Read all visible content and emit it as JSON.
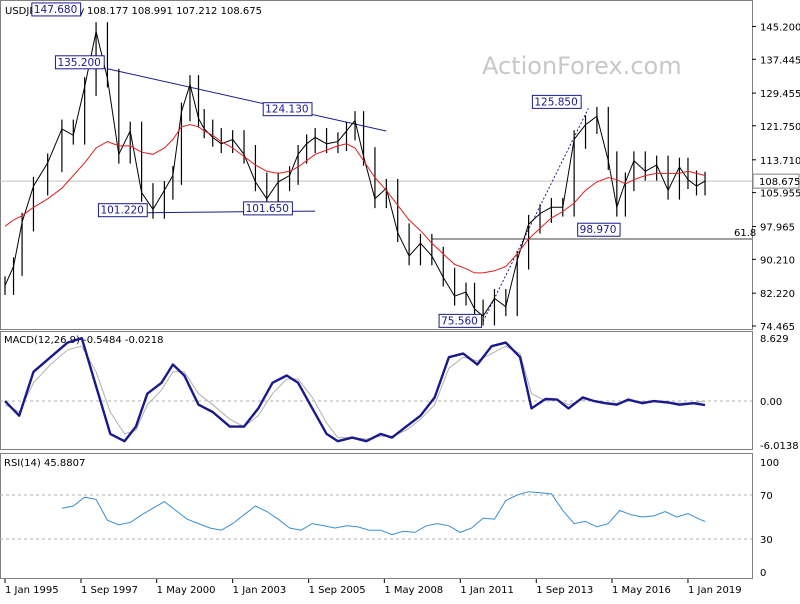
{
  "header": {
    "symbol": "USDJPY,Monthly",
    "ohlc": "108.177 108.991 107.212 108.675",
    "watermark": "ActionForex.com"
  },
  "colors": {
    "candles": "#000000",
    "ma": "#dd2020",
    "annotation": "#1a1a8c",
    "macd_line": "#1a1a8c",
    "signal_line": "#b0b0b0",
    "rsi_line": "#3a8fd0",
    "grid_dash": "#b0b0b0"
  },
  "chart_data": [
    {
      "type": "line",
      "name": "price",
      "title": "USDJPY,Monthly",
      "x_ticks": [
        "1 Jan 1995",
        "1 Sep 1997",
        "1 May 2000",
        "1 Jan 2003",
        "1 Sep 2005",
        "1 May 2008",
        "1 Jan 2011",
        "1 Sep 2013",
        "1 May 2016",
        "1 Jan 2019"
      ],
      "y_ticks": [
        145.2,
        137.445,
        129.455,
        121.75,
        113.71,
        105.955,
        97.965,
        90.21,
        82.22,
        74.465
      ],
      "ylim": [
        74.465,
        150.5
      ],
      "current_price": 108.675,
      "level_61_8": {
        "label": "61.8",
        "value": 95.0
      },
      "x": [
        1995.0,
        1995.3,
        1995.6,
        1996.0,
        1996.5,
        1997.0,
        1997.4,
        1997.8,
        1998.2,
        1998.6,
        1999.0,
        1999.4,
        1999.8,
        2000.2,
        2000.6,
        2000.9,
        2001.2,
        2001.5,
        2001.8,
        2002.0,
        2002.3,
        2002.6,
        2003.0,
        2003.4,
        2003.8,
        2004.2,
        2004.6,
        2005.0,
        2005.3,
        2005.6,
        2005.9,
        2006.3,
        2006.7,
        2007.0,
        2007.3,
        2007.6,
        2008.0,
        2008.4,
        2008.8,
        2009.2,
        2009.6,
        2010.0,
        2010.4,
        2010.8,
        2011.2,
        2011.5,
        2011.8,
        2012.2,
        2012.6,
        2013.0,
        2013.4,
        2013.8,
        2014.2,
        2014.6,
        2015.0,
        2015.4,
        2015.8,
        2016.2,
        2016.5,
        2016.8,
        2017.1,
        2017.5,
        2017.9,
        2018.3,
        2018.7,
        2019.0,
        2019.3,
        2019.6
      ],
      "series": [
        {
          "name": "Close",
          "values": [
            84.0,
            88.5,
            99.0,
            107.5,
            113.0,
            121.0,
            119.5,
            131.0,
            144.0,
            133.0,
            115.0,
            120.5,
            106.0,
            102.0,
            106.5,
            110.0,
            125.0,
            131.5,
            123.5,
            121.0,
            119.0,
            117.5,
            118.5,
            115.0,
            108.5,
            104.5,
            108.5,
            110.0,
            115.0,
            117.5,
            119.0,
            117.5,
            118.0,
            120.5,
            123.0,
            114.5,
            104.5,
            107.0,
            96.5,
            91.0,
            94.0,
            91.0,
            86.0,
            81.5,
            82.5,
            78.5,
            76.8,
            81.0,
            79.0,
            90.0,
            98.5,
            101.0,
            102.5,
            102.5,
            118.5,
            122.0,
            124.0,
            113.5,
            102.5,
            108.5,
            113.5,
            111.0,
            112.5,
            106.5,
            112.0,
            109.0,
            107.5,
            108.675
          ]
        },
        {
          "name": "Moving Average",
          "values": [
            98.0,
            99.5,
            100.5,
            102.5,
            104.5,
            107.0,
            110.0,
            113.0,
            116.5,
            118.0,
            117.0,
            117.0,
            115.5,
            115.0,
            116.5,
            118.5,
            121.5,
            122.0,
            121.5,
            120.5,
            119.5,
            118.0,
            116.5,
            114.5,
            112.5,
            111.0,
            110.5,
            111.0,
            112.0,
            113.5,
            115.0,
            116.0,
            117.0,
            117.5,
            116.5,
            113.5,
            109.5,
            106.5,
            103.0,
            99.5,
            97.0,
            94.0,
            91.5,
            89.0,
            88.0,
            87.0,
            87.0,
            87.5,
            88.5,
            91.5,
            95.0,
            97.5,
            100.0,
            101.5,
            103.5,
            106.5,
            108.5,
            109.5,
            109.0,
            108.0,
            109.0,
            110.0,
            110.5,
            110.5,
            110.5,
            111.0,
            110.5,
            110.0
          ]
        }
      ],
      "annotations": [
        {
          "label": "147.680",
          "x": 1997.7,
          "y": 147.68
        },
        {
          "label": "135.200",
          "x": 1998.6,
          "y": 135.2
        },
        {
          "label": "124.130",
          "x": 2005.9,
          "y": 124.13
        },
        {
          "label": "101.220",
          "x": 1999.9,
          "y": 101.22
        },
        {
          "label": "101.650",
          "x": 2005.0,
          "y": 101.65
        },
        {
          "label": "75.560",
          "x": 2011.8,
          "y": 75.56
        },
        {
          "label": "125.850",
          "x": 2015.5,
          "y": 125.85
        },
        {
          "label": "98.970",
          "x": 2016.6,
          "y": 98.97
        }
      ]
    },
    {
      "type": "line",
      "name": "macd",
      "title": "MACD(12,26,9) -0.5484 -0.0218",
      "y_ticks": [
        8.629,
        0.0,
        -6.0138
      ],
      "ylim": [
        -6.0138,
        8.629
      ],
      "x": [
        1995.0,
        1995.5,
        1996.0,
        1996.6,
        1997.2,
        1997.7,
        1998.2,
        1998.7,
        1999.2,
        1999.6,
        2000.0,
        2000.5,
        2000.9,
        2001.3,
        2001.8,
        2002.3,
        2002.9,
        2003.4,
        2003.9,
        2004.4,
        2004.9,
        2005.3,
        2005.8,
        2006.3,
        2006.7,
        2007.2,
        2007.7,
        2008.2,
        2008.6,
        2009.1,
        2009.6,
        2010.1,
        2010.6,
        2011.1,
        2011.6,
        2012.1,
        2012.6,
        2013.1,
        2013.5,
        2014.0,
        2014.4,
        2014.8,
        2015.3,
        2015.7,
        2016.1,
        2016.5,
        2016.9,
        2017.4,
        2017.8,
        2018.3,
        2018.7,
        2019.2,
        2019.6
      ],
      "series": [
        {
          "name": "MACD",
          "values": [
            0.0,
            -2.0,
            4.0,
            6.0,
            8.0,
            8.6,
            2.0,
            -4.5,
            -5.5,
            -3.5,
            1.0,
            2.5,
            5.0,
            3.5,
            -0.5,
            -1.5,
            -3.5,
            -3.5,
            -1.0,
            2.5,
            3.5,
            2.5,
            -1.0,
            -4.5,
            -5.5,
            -5.0,
            -5.5,
            -4.5,
            -5.0,
            -3.5,
            -2.0,
            0.5,
            6.0,
            6.5,
            5.0,
            7.5,
            8.0,
            6.0,
            -1.0,
            0.3,
            0.2,
            -1.0,
            0.5,
            0.0,
            -0.3,
            -0.5,
            0.2,
            -0.3,
            0.0,
            -0.2,
            -0.5,
            -0.3,
            -0.5484
          ]
        },
        {
          "name": "Signal",
          "values": [
            -0.5,
            -1.5,
            2.5,
            5.0,
            7.0,
            7.5,
            4.0,
            -1.5,
            -4.5,
            -4.0,
            -0.5,
            1.5,
            4.0,
            4.0,
            1.0,
            -0.5,
            -2.5,
            -3.5,
            -2.0,
            1.0,
            3.0,
            3.0,
            0.5,
            -3.0,
            -5.0,
            -5.0,
            -5.2,
            -4.8,
            -4.8,
            -4.0,
            -2.5,
            -0.5,
            4.5,
            6.0,
            5.5,
            6.5,
            7.5,
            6.5,
            1.0,
            0.0,
            0.2,
            -0.5,
            0.2,
            0.1,
            -0.2,
            -0.3,
            0.0,
            -0.1,
            0.0,
            -0.1,
            -0.3,
            -0.2,
            -0.0218
          ]
        }
      ]
    },
    {
      "type": "line",
      "name": "rsi",
      "title": "RSI(14) 45.8807",
      "y_ticks": [
        100,
        70,
        30,
        0
      ],
      "ylim": [
        0,
        100
      ],
      "x": [
        1997.0,
        1997.4,
        1997.8,
        1998.2,
        1998.6,
        1999.0,
        1999.4,
        1999.8,
        2000.2,
        2000.6,
        2001.0,
        2001.4,
        2001.8,
        2002.2,
        2002.6,
        2003.0,
        2003.4,
        2003.8,
        2004.2,
        2004.6,
        2005.0,
        2005.4,
        2005.8,
        2006.2,
        2006.6,
        2007.0,
        2007.4,
        2007.8,
        2008.2,
        2008.6,
        2009.0,
        2009.4,
        2009.8,
        2010.2,
        2010.6,
        2011.0,
        2011.4,
        2011.8,
        2012.2,
        2012.6,
        2013.0,
        2013.4,
        2013.8,
        2014.2,
        2014.6,
        2015.0,
        2015.4,
        2015.8,
        2016.2,
        2016.6,
        2017.0,
        2017.4,
        2017.8,
        2018.2,
        2018.6,
        2019.0,
        2019.4,
        2019.6
      ],
      "series": [
        {
          "name": "RSI",
          "values": [
            58,
            60,
            68,
            66,
            47,
            43,
            45,
            52,
            58,
            64,
            56,
            48,
            44,
            40,
            38,
            44,
            52,
            60,
            55,
            48,
            40,
            38,
            44,
            42,
            40,
            42,
            41,
            38,
            38,
            34,
            37,
            36,
            42,
            44,
            42,
            36,
            40,
            49,
            48,
            65,
            70,
            73,
            72,
            71,
            56,
            44,
            46,
            41,
            44,
            56,
            52,
            50,
            51,
            55,
            50,
            53,
            48,
            45.8807
          ]
        }
      ]
    }
  ]
}
